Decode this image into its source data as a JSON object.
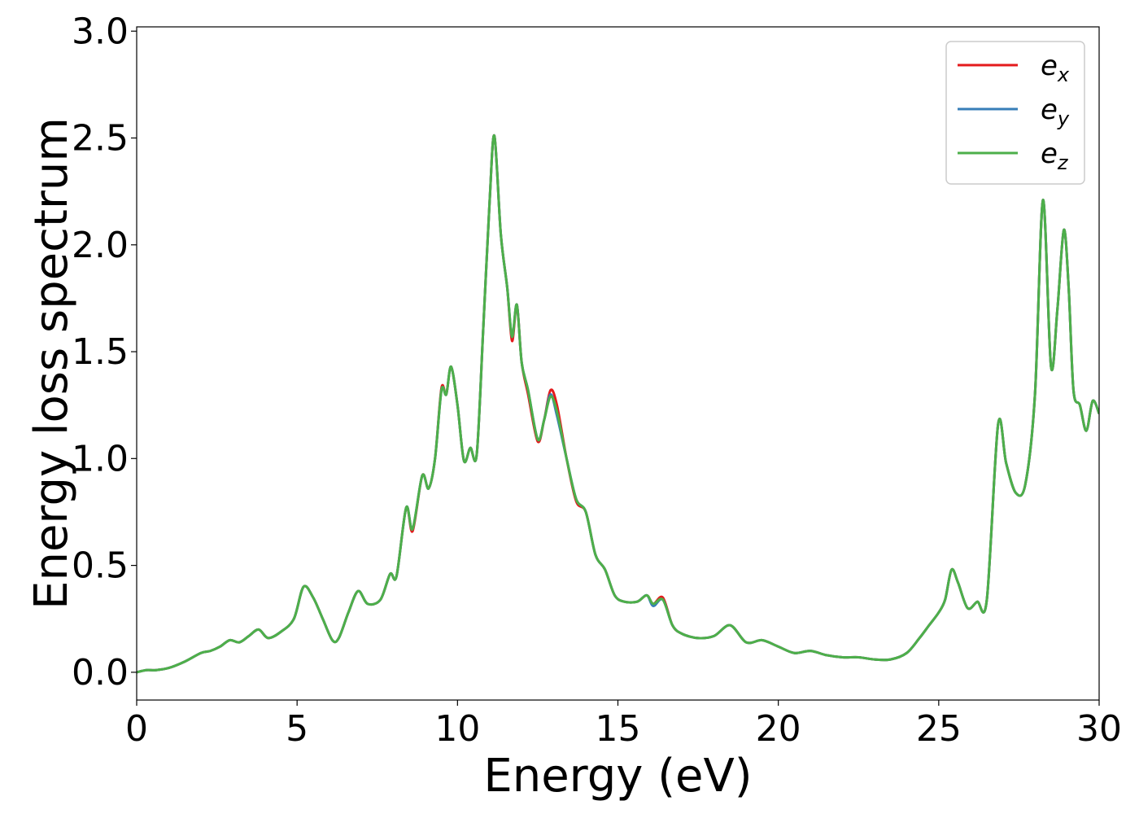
{
  "chart_data": {
    "type": "line",
    "xlabel": "Energy (eV)",
    "ylabel": "Energy loss spectrum",
    "xlim": [
      0,
      30
    ],
    "ylim": [
      -0.13,
      3.02
    ],
    "x_ticks": [
      "0",
      "5",
      "10",
      "15",
      "20",
      "25",
      "30"
    ],
    "y_ticks": [
      "0.0",
      "0.5",
      "1.0",
      "1.5",
      "2.0",
      "2.5",
      "3.0"
    ],
    "grid": false,
    "legend_position": "top-right",
    "x": [
      0,
      0.3,
      0.6,
      1.0,
      1.5,
      2.0,
      2.3,
      2.6,
      2.9,
      3.2,
      3.5,
      3.8,
      4.1,
      4.5,
      4.9,
      5.2,
      5.5,
      5.8,
      6.1,
      6.3,
      6.6,
      6.9,
      7.2,
      7.6,
      7.9,
      8.1,
      8.4,
      8.6,
      8.9,
      9.1,
      9.3,
      9.5,
      9.65,
      9.8,
      10.0,
      10.2,
      10.4,
      10.6,
      10.8,
      11.0,
      11.15,
      11.35,
      11.55,
      11.7,
      11.85,
      12.0,
      12.2,
      12.5,
      12.7,
      12.9,
      13.1,
      13.4,
      13.7,
      14.0,
      14.3,
      14.6,
      14.9,
      15.2,
      15.6,
      15.9,
      16.1,
      16.4,
      16.7,
      17.0,
      17.5,
      18.0,
      18.5,
      19.0,
      19.5,
      20.0,
      20.5,
      21.0,
      21.5,
      22.0,
      22.5,
      23.0,
      23.5,
      24.0,
      24.4,
      24.7,
      25.0,
      25.2,
      25.4,
      25.6,
      25.9,
      26.2,
      26.5,
      26.85,
      27.1,
      27.4,
      27.7,
      28.0,
      28.25,
      28.5,
      28.7,
      28.9,
      29.05,
      29.2,
      29.4,
      29.6,
      29.8,
      30.0
    ],
    "series": [
      {
        "name": "e_x",
        "color": "#e41a1c",
        "values": [
          0.0,
          0.01,
          0.01,
          0.02,
          0.05,
          0.09,
          0.1,
          0.12,
          0.15,
          0.14,
          0.17,
          0.2,
          0.16,
          0.19,
          0.25,
          0.4,
          0.35,
          0.25,
          0.15,
          0.16,
          0.28,
          0.38,
          0.32,
          0.34,
          0.46,
          0.45,
          0.77,
          0.66,
          0.92,
          0.86,
          1.0,
          1.33,
          1.3,
          1.43,
          1.25,
          0.99,
          1.05,
          1.02,
          1.6,
          2.2,
          2.51,
          2.05,
          1.8,
          1.55,
          1.72,
          1.45,
          1.3,
          1.08,
          1.18,
          1.32,
          1.25,
          1.0,
          0.8,
          0.75,
          0.55,
          0.48,
          0.36,
          0.33,
          0.33,
          0.36,
          0.32,
          0.35,
          0.22,
          0.18,
          0.16,
          0.17,
          0.22,
          0.14,
          0.15,
          0.12,
          0.09,
          0.1,
          0.08,
          0.07,
          0.07,
          0.06,
          0.06,
          0.09,
          0.16,
          0.22,
          0.28,
          0.34,
          0.48,
          0.42,
          0.3,
          0.33,
          0.34,
          1.16,
          0.98,
          0.84,
          0.88,
          1.3,
          2.21,
          1.43,
          1.7,
          2.07,
          1.8,
          1.32,
          1.25,
          1.13,
          1.27,
          1.21
        ]
      },
      {
        "name": "e_y",
        "color": "#377eb8",
        "values": [
          0.0,
          0.01,
          0.01,
          0.02,
          0.05,
          0.09,
          0.1,
          0.12,
          0.15,
          0.14,
          0.17,
          0.2,
          0.16,
          0.19,
          0.25,
          0.4,
          0.35,
          0.25,
          0.15,
          0.16,
          0.28,
          0.38,
          0.32,
          0.34,
          0.46,
          0.45,
          0.77,
          0.67,
          0.92,
          0.86,
          1.0,
          1.32,
          1.3,
          1.43,
          1.25,
          0.99,
          1.05,
          1.02,
          1.6,
          2.2,
          2.51,
          2.05,
          1.8,
          1.57,
          1.72,
          1.45,
          1.32,
          1.09,
          1.18,
          1.3,
          1.2,
          1.0,
          0.81,
          0.75,
          0.55,
          0.48,
          0.36,
          0.33,
          0.33,
          0.36,
          0.31,
          0.34,
          0.22,
          0.18,
          0.16,
          0.17,
          0.22,
          0.14,
          0.15,
          0.12,
          0.09,
          0.1,
          0.08,
          0.07,
          0.07,
          0.06,
          0.06,
          0.09,
          0.16,
          0.22,
          0.28,
          0.34,
          0.48,
          0.42,
          0.3,
          0.33,
          0.34,
          1.16,
          0.98,
          0.84,
          0.88,
          1.3,
          2.21,
          1.43,
          1.7,
          2.07,
          1.8,
          1.32,
          1.25,
          1.13,
          1.27,
          1.21
        ]
      },
      {
        "name": "e_z",
        "color": "#4daf4a",
        "values": [
          0.0,
          0.01,
          0.01,
          0.02,
          0.05,
          0.09,
          0.1,
          0.12,
          0.15,
          0.14,
          0.17,
          0.2,
          0.16,
          0.19,
          0.25,
          0.4,
          0.35,
          0.25,
          0.15,
          0.16,
          0.28,
          0.38,
          0.32,
          0.34,
          0.46,
          0.45,
          0.77,
          0.67,
          0.92,
          0.86,
          1.0,
          1.32,
          1.3,
          1.43,
          1.25,
          0.99,
          1.05,
          1.02,
          1.6,
          2.2,
          2.51,
          2.05,
          1.8,
          1.57,
          1.72,
          1.45,
          1.32,
          1.09,
          1.18,
          1.29,
          1.22,
          1.0,
          0.81,
          0.75,
          0.55,
          0.48,
          0.36,
          0.33,
          0.33,
          0.36,
          0.32,
          0.34,
          0.22,
          0.18,
          0.16,
          0.17,
          0.22,
          0.14,
          0.15,
          0.12,
          0.09,
          0.1,
          0.08,
          0.07,
          0.07,
          0.06,
          0.06,
          0.09,
          0.16,
          0.22,
          0.28,
          0.34,
          0.48,
          0.42,
          0.3,
          0.33,
          0.34,
          1.16,
          0.98,
          0.84,
          0.88,
          1.3,
          2.21,
          1.43,
          1.7,
          2.07,
          1.8,
          1.32,
          1.25,
          1.13,
          1.27,
          1.21
        ]
      }
    ],
    "legend": [
      {
        "base": "e",
        "sub": "x"
      },
      {
        "base": "e",
        "sub": "y"
      },
      {
        "base": "e",
        "sub": "z"
      }
    ]
  }
}
